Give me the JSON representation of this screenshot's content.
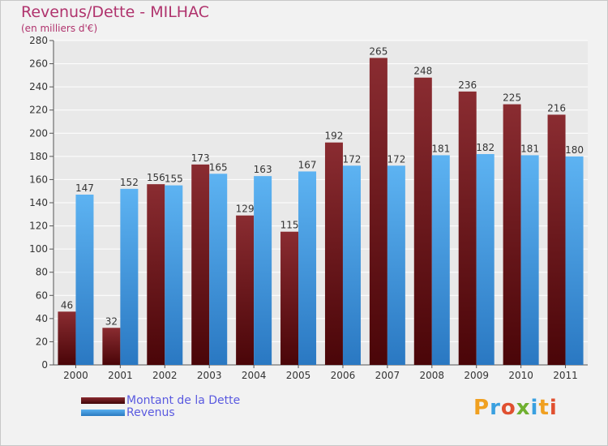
{
  "chart_data": {
    "type": "bar",
    "title": "Revenus/Dette - MILHAC",
    "subtitle": "(en milliers d'€)",
    "categories": [
      "2000",
      "2001",
      "2002",
      "2003",
      "2004",
      "2005",
      "2006",
      "2007",
      "2008",
      "2009",
      "2010",
      "2011"
    ],
    "series": [
      {
        "name": "Montant de la Dette",
        "color": "#7a1f24",
        "values": [
          46,
          32,
          156,
          173,
          129,
          115,
          192,
          265,
          248,
          236,
          225,
          216
        ]
      },
      {
        "name": "Revenus",
        "color": "#3f97e0",
        "values": [
          147,
          152,
          155,
          165,
          163,
          167,
          172,
          172,
          181,
          182,
          181,
          180
        ]
      }
    ],
    "yticks": [
      0,
      20,
      40,
      60,
      80,
      100,
      120,
      140,
      160,
      180,
      200,
      220,
      240,
      260,
      280
    ],
    "ylim": [
      0,
      280
    ],
    "xlabel": "",
    "ylabel": "",
    "grid": true,
    "legend_position": "bottom-left"
  },
  "logo": {
    "letters": [
      "P",
      "r",
      "o",
      "x",
      "i",
      "t",
      "i"
    ],
    "colors": [
      "#f0a020",
      "#3aa0e0",
      "#e05030",
      "#70b030",
      "#3aa0e0",
      "#f0a020",
      "#e05030"
    ]
  }
}
